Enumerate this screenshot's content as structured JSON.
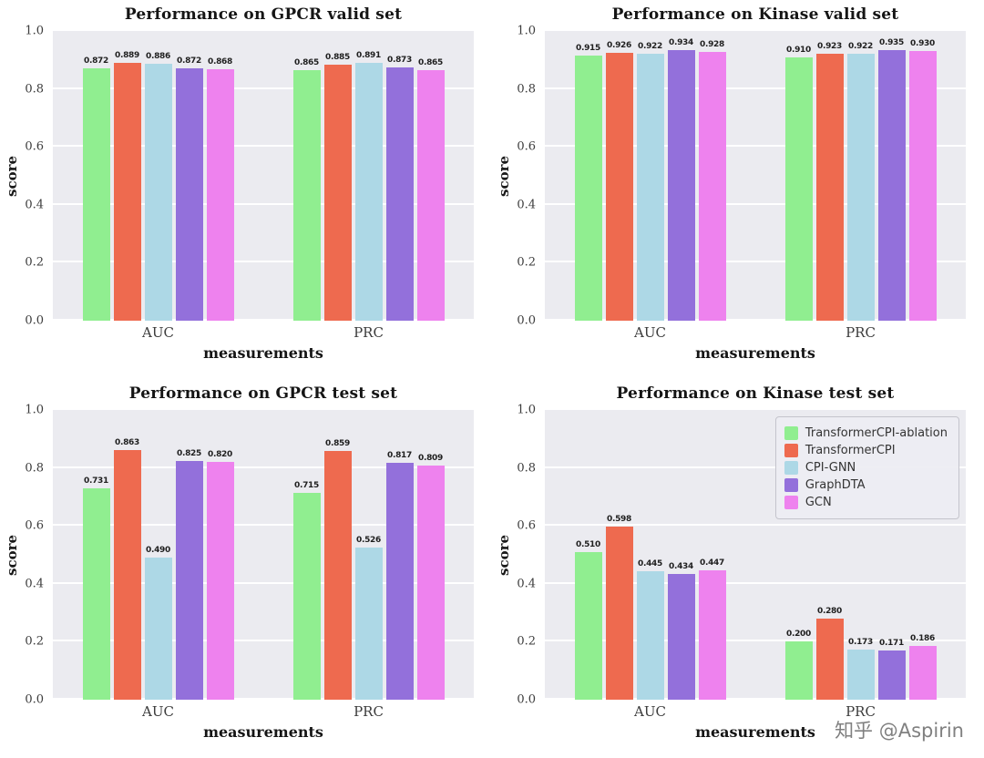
{
  "style": {
    "plot_bg": "#ebebf0",
    "grid_color": "#ffffff",
    "page_bg": "#ffffff"
  },
  "watermark": {
    "text": "知乎 @Aspirin",
    "color": "#808080"
  },
  "chart_data": [
    {
      "type": "bar",
      "title": "Performance on GPCR valid set",
      "xlabel": "measurements",
      "ylabel": "score",
      "ylim": [
        0,
        1.0
      ],
      "yticks": [
        0.0,
        0.2,
        0.4,
        0.6,
        0.8,
        1.0
      ],
      "categories": [
        "AUC",
        "PRC"
      ],
      "legend": false,
      "series": [
        {
          "name": "TransformerCPI-ablation",
          "color": "#90ee90",
          "values": [
            0.872,
            0.865
          ]
        },
        {
          "name": "TransformerCPI",
          "color": "#ee6a4f",
          "values": [
            0.889,
            0.885
          ]
        },
        {
          "name": "CPI-GNN",
          "color": "#add8e6",
          "values": [
            0.886,
            0.891
          ]
        },
        {
          "name": "GraphDTA",
          "color": "#9370db",
          "values": [
            0.872,
            0.873
          ]
        },
        {
          "name": "GCN",
          "color": "#ee82ee",
          "values": [
            0.868,
            0.865
          ]
        }
      ]
    },
    {
      "type": "bar",
      "title": "Performance on Kinase valid set",
      "xlabel": "measurements",
      "ylabel": "score",
      "ylim": [
        0,
        1.0
      ],
      "yticks": [
        0.0,
        0.2,
        0.4,
        0.6,
        0.8,
        1.0
      ],
      "categories": [
        "AUC",
        "PRC"
      ],
      "legend": false,
      "series": [
        {
          "name": "TransformerCPI-ablation",
          "color": "#90ee90",
          "values": [
            0.915,
            0.91
          ]
        },
        {
          "name": "TransformerCPI",
          "color": "#ee6a4f",
          "values": [
            0.926,
            0.923
          ]
        },
        {
          "name": "CPI-GNN",
          "color": "#add8e6",
          "values": [
            0.922,
            0.922
          ]
        },
        {
          "name": "GraphDTA",
          "color": "#9370db",
          "values": [
            0.934,
            0.935
          ]
        },
        {
          "name": "GCN",
          "color": "#ee82ee",
          "values": [
            0.928,
            0.93
          ]
        }
      ]
    },
    {
      "type": "bar",
      "title": "Performance on GPCR test set",
      "xlabel": "measurements",
      "ylabel": "score",
      "ylim": [
        0,
        1.0
      ],
      "yticks": [
        0.0,
        0.2,
        0.4,
        0.6,
        0.8,
        1.0
      ],
      "categories": [
        "AUC",
        "PRC"
      ],
      "legend": false,
      "series": [
        {
          "name": "TransformerCPI-ablation",
          "color": "#90ee90",
          "values": [
            0.731,
            0.715
          ]
        },
        {
          "name": "TransformerCPI",
          "color": "#ee6a4f",
          "values": [
            0.863,
            0.859
          ]
        },
        {
          "name": "CPI-GNN",
          "color": "#add8e6",
          "values": [
            0.49,
            0.526
          ]
        },
        {
          "name": "GraphDTA",
          "color": "#9370db",
          "values": [
            0.825,
            0.817
          ]
        },
        {
          "name": "GCN",
          "color": "#ee82ee",
          "values": [
            0.82,
            0.809
          ]
        }
      ]
    },
    {
      "type": "bar",
      "title": "Performance on Kinase test set",
      "xlabel": "measurements",
      "ylabel": "score",
      "ylim": [
        0,
        1.0
      ],
      "yticks": [
        0.0,
        0.2,
        0.4,
        0.6,
        0.8,
        1.0
      ],
      "categories": [
        "AUC",
        "PRC"
      ],
      "legend": true,
      "series": [
        {
          "name": "TransformerCPI-ablation",
          "color": "#90ee90",
          "values": [
            0.51,
            0.2
          ]
        },
        {
          "name": "TransformerCPI",
          "color": "#ee6a4f",
          "values": [
            0.598,
            0.28
          ]
        },
        {
          "name": "CPI-GNN",
          "color": "#add8e6",
          "values": [
            0.445,
            0.173
          ]
        },
        {
          "name": "GraphDTA",
          "color": "#9370db",
          "values": [
            0.434,
            0.171
          ]
        },
        {
          "name": "GCN",
          "color": "#ee82ee",
          "values": [
            0.447,
            0.186
          ]
        }
      ]
    }
  ]
}
